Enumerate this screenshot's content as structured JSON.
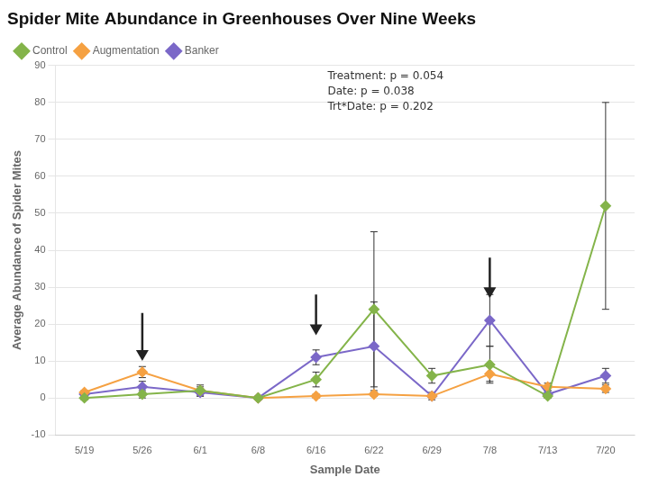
{
  "chart_data": {
    "type": "line",
    "title": "Spider Mite Abundance in Greenhouses Over Nine Weeks",
    "xlabel": "Sample Date",
    "ylabel": "Average Abundance of Spider Mites",
    "categories": [
      "5/19",
      "5/26",
      "6/1",
      "6/8",
      "6/16",
      "6/22",
      "6/29",
      "7/8",
      "7/13",
      "7/20"
    ],
    "series": [
      {
        "name": "Control",
        "color": "#84b44a",
        "marker": "diamond",
        "values": [
          0.0,
          1.0,
          2.0,
          0.0,
          5.0,
          24.0,
          6.0,
          9.0,
          0.5,
          52.0
        ],
        "errors": [
          0.5,
          1.0,
          1.5,
          0.5,
          2.0,
          21.0,
          2.0,
          5.0,
          0.5,
          28.0
        ]
      },
      {
        "name": "Augmentation",
        "color": "#f5a142",
        "marker": "diamond",
        "values": [
          1.5,
          7.0,
          2.0,
          0.0,
          0.5,
          1.0,
          0.5,
          6.5,
          3.0,
          2.5
        ],
        "errors": [
          0.5,
          1.5,
          1.0,
          0.2,
          0.5,
          0.5,
          0.5,
          2.0,
          1.0,
          1.0
        ]
      },
      {
        "name": "Banker",
        "color": "#7b68c8",
        "marker": "diamond",
        "values": [
          1.0,
          3.0,
          1.5,
          0.0,
          11.0,
          14.0,
          0.5,
          21.0,
          1.0,
          6.0
        ],
        "errors": [
          0.5,
          1.5,
          1.0,
          0.2,
          2.0,
          12.0,
          1.0,
          7.0,
          1.0,
          2.0
        ]
      }
    ],
    "ylim": [
      -10,
      90
    ],
    "yticks": [
      -10,
      0,
      10,
      20,
      30,
      40,
      50,
      60,
      70,
      80,
      90
    ],
    "grid": true,
    "legend": "upper left",
    "annotation": "Treatment: p = 0.054\nDate: p = 0.038\nTrt*Date: p = 0.202",
    "arrows": [
      {
        "x": "5/26",
        "from": 23,
        "to": 10
      },
      {
        "x": "6/16",
        "from": 28,
        "to": 17
      },
      {
        "x": "7/8",
        "from": 38,
        "to": 27
      }
    ]
  }
}
